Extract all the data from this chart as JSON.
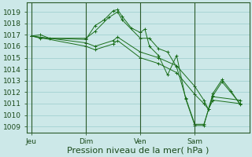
{
  "bg_color": "#cce8e8",
  "grid_color": "#99cccc",
  "line_color": "#1a6e1a",
  "xlabel": "Pression niveau de la mer( hPa )",
  "xlabel_fontsize": 8,
  "tick_fontsize": 6.5,
  "ylim": [
    1008.5,
    1019.8
  ],
  "yticks": [
    1009,
    1010,
    1011,
    1012,
    1013,
    1014,
    1015,
    1016,
    1017,
    1018,
    1019
  ],
  "day_labels": [
    "Jeu",
    "Dim",
    "Ven",
    "Sam"
  ],
  "day_vline_x": [
    0,
    6,
    12,
    18
  ],
  "xlim": [
    -0.5,
    24
  ],
  "series": [
    [
      0,
      1016.9,
      1,
      1017.0,
      2,
      1016.7,
      6,
      1016.6,
      7,
      1017.8,
      8,
      1018.3,
      9,
      1019.1,
      9.5,
      1019.2,
      10,
      1018.6,
      11,
      1017.6,
      12,
      1017.2,
      12.5,
      1017.5,
      13,
      1016.0,
      14,
      1015.2,
      15,
      1013.5,
      16,
      1015.2,
      17,
      1011.4,
      18,
      1009.1,
      19,
      1009.1,
      20,
      1011.9,
      21,
      1013.1,
      22,
      1012.1,
      23,
      1010.9
    ],
    [
      0,
      1016.9,
      1,
      1016.7,
      6,
      1016.7,
      7,
      1017.3,
      8.5,
      1018.5,
      9.5,
      1019.0,
      10,
      1018.3,
      12,
      1016.7,
      13,
      1016.7,
      14,
      1015.8,
      15,
      1015.5,
      16,
      1014.2,
      17,
      1011.5,
      18,
      1009.2,
      19,
      1009.2,
      20,
      1011.7,
      21,
      1012.9,
      23,
      1011.0
    ],
    [
      0,
      1016.9,
      6,
      1016.3,
      7,
      1016.0,
      9,
      1016.5,
      9.5,
      1016.8,
      12,
      1015.5,
      14,
      1015.0,
      16,
      1014.3,
      18,
      1012.5,
      19,
      1011.3,
      19.5,
      1010.5,
      20,
      1011.6,
      23,
      1011.3
    ],
    [
      0,
      1016.9,
      6,
      1016.0,
      7,
      1015.7,
      9,
      1016.2,
      9.5,
      1016.5,
      12,
      1015.0,
      14,
      1014.5,
      16,
      1013.7,
      18,
      1011.8,
      19,
      1011.0,
      19.5,
      1010.5,
      20,
      1011.3,
      23,
      1011.0
    ]
  ]
}
